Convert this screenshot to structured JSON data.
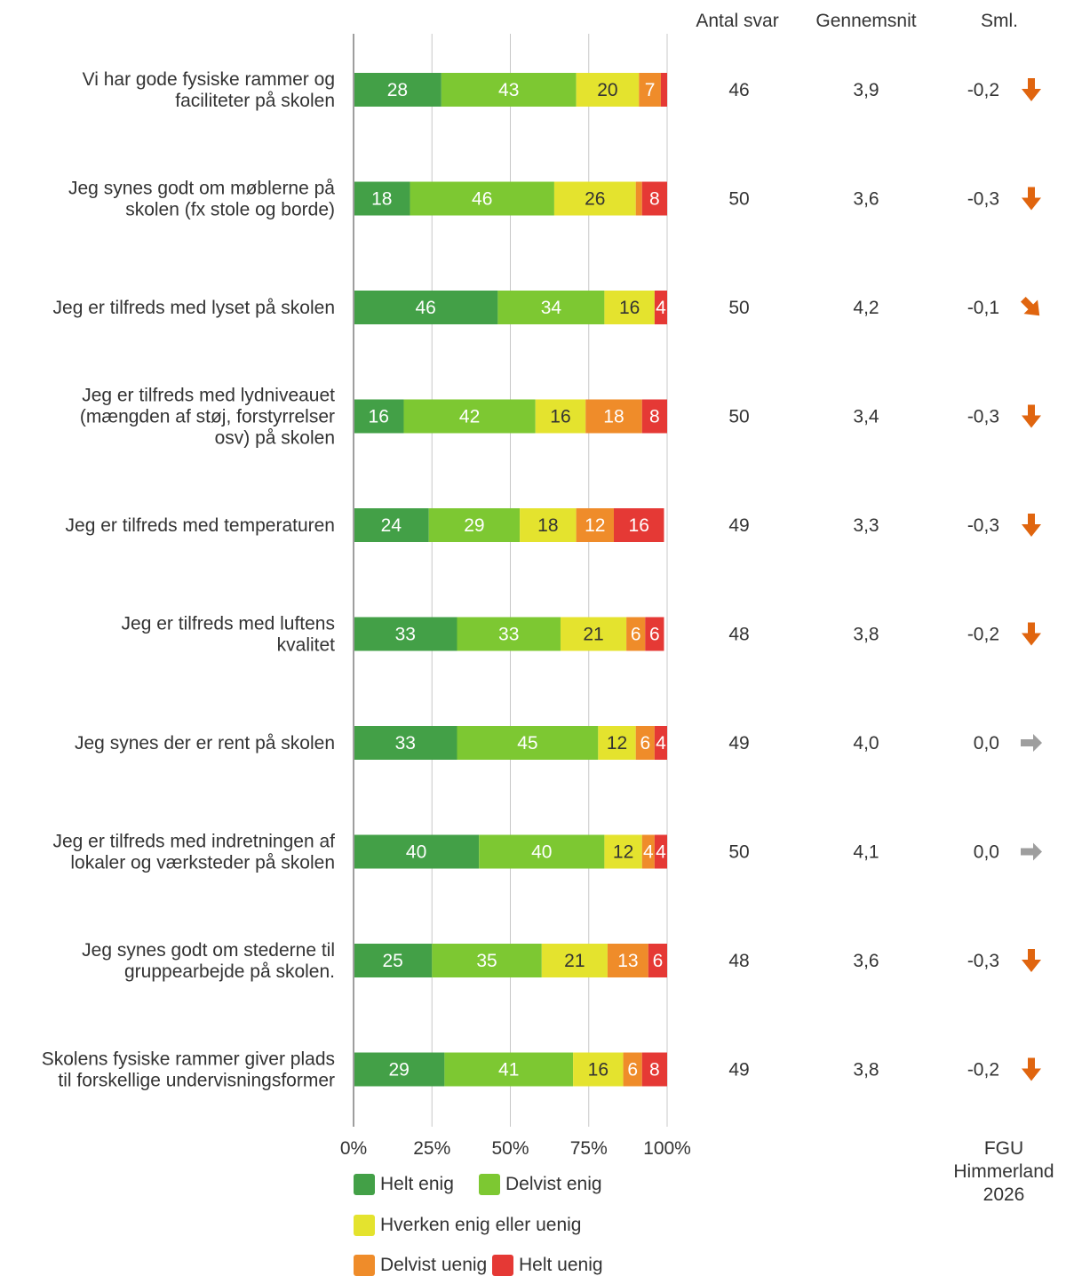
{
  "chart_data": {
    "type": "bar",
    "stacked": true,
    "orientation": "horizontal",
    "xlim": [
      0,
      100
    ],
    "x_ticks": [
      "0%",
      "25%",
      "50%",
      "75%",
      "100%"
    ],
    "grid": true,
    "legend_position": "bottom",
    "categories": [
      "Vi har gode fysiske rammer og faciliteter på skolen",
      "Jeg synes godt om møblerne på skolen (fx stole og borde)",
      "Jeg er tilfreds med lyset på skolen",
      "Jeg er tilfreds med lydniveauet (mængden af støj, forstyrrelser osv) på skolen",
      "Jeg er tilfreds med temperaturen",
      "Jeg er tilfreds med luftens kvalitet",
      "Jeg synes der er rent på skolen",
      "Jeg er tilfreds med indretningen af lokaler og værksteder på skolen",
      "Jeg synes godt om stederne til gruppearbejde på skolen.",
      "Skolens fysiske rammer giver plads til forskellige undervisningsformer"
    ],
    "series": [
      {
        "name": "Helt enig",
        "color": "#43a047",
        "values": [
          28,
          18,
          46,
          16,
          24,
          33,
          33,
          40,
          25,
          29
        ]
      },
      {
        "name": "Delvist enig",
        "color": "#7dc832",
        "values": [
          43,
          46,
          34,
          42,
          29,
          33,
          45,
          40,
          35,
          41
        ]
      },
      {
        "name": "Hverken enig eller uenig",
        "color": "#e4e32e",
        "values": [
          20,
          26,
          16,
          16,
          18,
          21,
          12,
          12,
          21,
          16
        ]
      },
      {
        "name": "Delvist uenig",
        "color": "#ef8c2a",
        "values": [
          7,
          2,
          0,
          18,
          12,
          6,
          6,
          4,
          13,
          6
        ]
      },
      {
        "name": "Helt uenig",
        "color": "#e53935",
        "values": [
          2,
          8,
          4,
          8,
          16,
          6,
          4,
          4,
          6,
          8
        ]
      }
    ],
    "labels": [
      [
        "28",
        "43",
        "20",
        "7",
        ""
      ],
      [
        "18",
        "46",
        "26",
        "",
        "8"
      ],
      [
        "46",
        "34",
        "16",
        "",
        "4"
      ],
      [
        "16",
        "42",
        "16",
        "18",
        "8"
      ],
      [
        "24",
        "29",
        "18",
        "12",
        "16"
      ],
      [
        "33",
        "33",
        "21",
        "6",
        "6"
      ],
      [
        "33",
        "45",
        "12",
        "6",
        "4"
      ],
      [
        "40",
        "40",
        "12",
        "4",
        "4"
      ],
      [
        "25",
        "35",
        "21",
        "13",
        "6"
      ],
      [
        "29",
        "41",
        "16",
        "6",
        "8"
      ]
    ],
    "columns": {
      "headers": [
        "Antal svar",
        "Gennemsnit",
        "Sml."
      ],
      "antal_svar": [
        "46",
        "50",
        "50",
        "50",
        "49",
        "48",
        "49",
        "50",
        "48",
        "49"
      ],
      "gennemsnit": [
        "3,9",
        "3,6",
        "4,2",
        "3,4",
        "3,3",
        "3,8",
        "4,0",
        "4,1",
        "3,6",
        "3,8"
      ],
      "sml": [
        "-0,2",
        "-0,3",
        "-0,1",
        "-0,3",
        "-0,3",
        "-0,2",
        "0,0",
        "0,0",
        "-0,3",
        "-0,2"
      ],
      "sml_icons": [
        "arrow-down-icon",
        "arrow-down-icon",
        "arrow-down-right-icon",
        "arrow-down-icon",
        "arrow-down-icon",
        "arrow-down-icon",
        "arrow-right-icon",
        "arrow-right-icon",
        "arrow-down-icon",
        "arrow-down-icon"
      ]
    },
    "icon_colors": {
      "down": "#e0650f",
      "neutral": "#9e9e9e"
    }
  },
  "footer": {
    "line1": "FGU",
    "line2": "Himmerland",
    "line3": "2026"
  }
}
